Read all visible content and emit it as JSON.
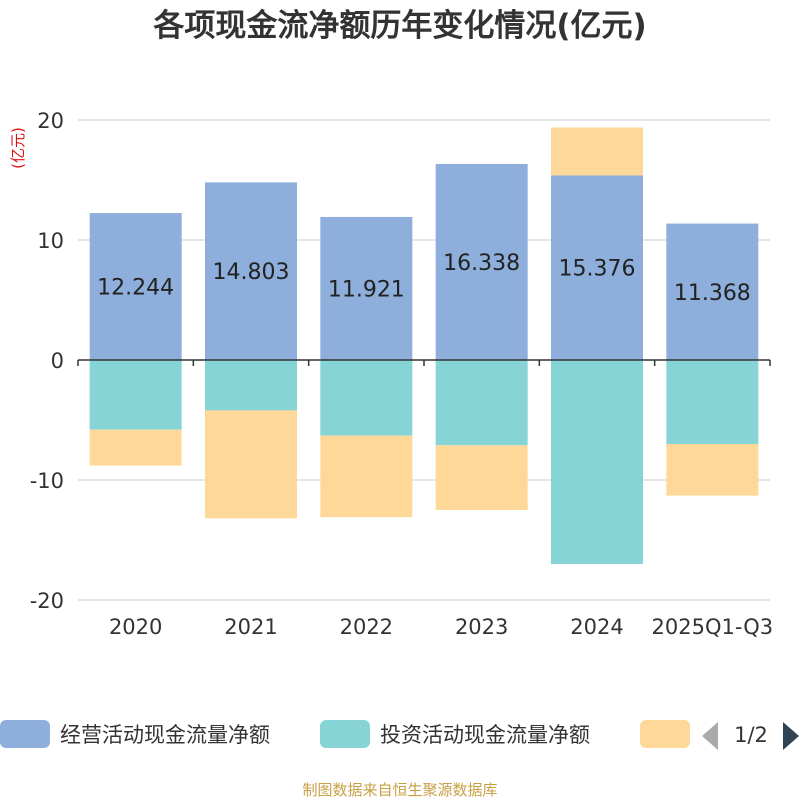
{
  "chart_data": {
    "type": "bar",
    "stacked": true,
    "title": "各项现金流净额历年变化情况(亿元)",
    "ylabel": "(亿元)",
    "ylim": [
      -20,
      20
    ],
    "yticks": [
      20,
      10,
      0,
      -10,
      -20
    ],
    "categories": [
      "2020",
      "2021",
      "2022",
      "2023",
      "2024",
      "2025Q1-Q3"
    ],
    "series": [
      {
        "name": "经营活动现金流量净额",
        "color": "#8eaedb",
        "values": [
          12.244,
          14.803,
          11.921,
          16.338,
          15.376,
          11.368
        ],
        "show_labels": true
      },
      {
        "name": "投资活动现金流量净额",
        "color": "#86d4d6",
        "values": [
          -5.8,
          -4.2,
          -6.3,
          -7.1,
          -17.0,
          -7.0
        ],
        "show_labels": false
      },
      {
        "name": "",
        "color": "#fdd899",
        "values": [
          -3.0,
          -9.0,
          -6.8,
          -5.4,
          4.0,
          -4.3
        ],
        "show_labels": false
      }
    ],
    "legend": {
      "page": "1/2",
      "placement": "bottom"
    }
  },
  "footer": {
    "source": "制图数据来自恒生聚源数据库"
  },
  "colors": {
    "axis": "#333333",
    "grid": "#cccccc",
    "ylabel": "#e01010",
    "footer": "#c8a046",
    "legend_arrow_active": "#2f4554",
    "legend_arrow_inactive": "#aaaaaa"
  }
}
